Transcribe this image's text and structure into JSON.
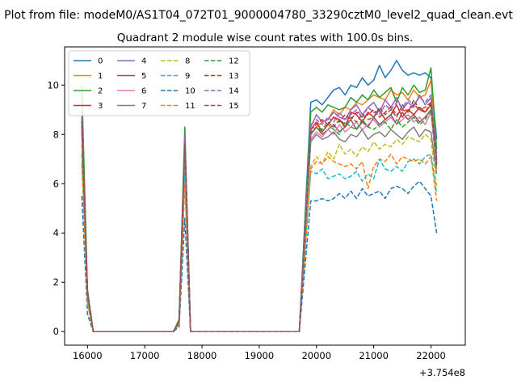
{
  "figure": {
    "suptitle": "Plot from file: modeM0/AS1T04_072T01_9000004780_33290cztM0_level2_quad_clean.evt"
  },
  "chart_data": {
    "type": "line",
    "title": "Quadrant 2 module wise count rates with 100.0s bins.",
    "xlabel": "",
    "ylabel": "",
    "x_offset_label": "+3.754e8",
    "x_offset": 375400000,
    "xlim": [
      375415600,
      375422600
    ],
    "ylim": [
      -0.55,
      11.55
    ],
    "x_ticks": [
      16000,
      17000,
      18000,
      19000,
      20000,
      21000,
      22000
    ],
    "y_ticks": [
      0,
      2,
      4,
      6,
      8,
      10
    ],
    "grid": false,
    "legend_position": "top-left",
    "legend_columns": 4,
    "x": [
      375415900,
      375416000,
      375416100,
      375416200,
      375417500,
      375417600,
      375417700,
      375417800,
      375419700,
      375419900,
      375420000,
      375420100,
      375420200,
      375420300,
      375420400,
      375420500,
      375420600,
      375420700,
      375420800,
      375420900,
      375421000,
      375421100,
      375421200,
      375421300,
      375421400,
      375421500,
      375421600,
      375421700,
      375421800,
      375421900,
      375422000,
      375422100
    ],
    "series": [
      {
        "name": "0",
        "color": "#1f77b4",
        "dash": "solid",
        "values": [
          8.7,
          1.5,
          0,
          0,
          0,
          0.4,
          8.0,
          0,
          0,
          9.3,
          9.4,
          9.2,
          9.5,
          9.8,
          9.9,
          9.6,
          10.0,
          9.9,
          10.3,
          10.0,
          10.2,
          10.8,
          10.3,
          10.6,
          11.0,
          10.6,
          10.4,
          10.5,
          10.4,
          10.5,
          10.3,
          7.8
        ]
      },
      {
        "name": "1",
        "color": "#ff7f0e",
        "dash": "solid",
        "values": [
          8.5,
          1.6,
          0,
          0,
          0,
          0.4,
          7.7,
          0,
          0,
          8.0,
          8.3,
          8.5,
          8.6,
          9.0,
          8.8,
          9.1,
          9.0,
          9.3,
          9.2,
          9.4,
          9.6,
          9.5,
          9.4,
          9.8,
          9.6,
          9.7,
          9.4,
          9.8,
          9.5,
          9.6,
          10.2,
          7.2
        ]
      },
      {
        "name": "2",
        "color": "#2ca02c",
        "dash": "solid",
        "values": [
          10.0,
          1.7,
          0,
          0,
          0,
          0.5,
          8.3,
          0,
          0,
          8.9,
          9.1,
          8.9,
          9.2,
          9.1,
          9.0,
          9.1,
          9.5,
          9.3,
          9.6,
          9.4,
          9.8,
          9.5,
          9.7,
          9.9,
          9.3,
          9.9,
          9.6,
          10.0,
          9.7,
          9.8,
          10.7,
          7.4
        ]
      },
      {
        "name": "3",
        "color": "#d62728",
        "dash": "solid",
        "values": [
          8.4,
          1.6,
          0,
          0,
          0,
          0.4,
          7.8,
          0,
          0,
          8.2,
          8.5,
          8.1,
          8.4,
          8.7,
          8.6,
          8.3,
          8.9,
          8.8,
          8.5,
          8.9,
          8.7,
          9.0,
          8.6,
          8.8,
          9.2,
          8.7,
          9.0,
          8.8,
          9.1,
          8.9,
          9.2,
          6.9
        ]
      },
      {
        "name": "4",
        "color": "#9467bd",
        "dash": "solid",
        "values": [
          8.9,
          1.6,
          0,
          0,
          0,
          0.4,
          7.9,
          0,
          0,
          8.3,
          8.8,
          8.5,
          8.6,
          8.9,
          8.7,
          8.6,
          9.0,
          9.2,
          8.8,
          9.1,
          9.3,
          8.9,
          9.4,
          9.1,
          9.5,
          9.0,
          9.3,
          9.1,
          9.6,
          9.2,
          9.5,
          7.0
        ]
      },
      {
        "name": "5",
        "color": "#8c564b",
        "dash": "solid",
        "values": [
          8.6,
          1.5,
          0,
          0,
          0,
          0.4,
          7.5,
          0,
          0,
          8.0,
          8.3,
          8.0,
          8.2,
          8.4,
          8.1,
          8.3,
          8.6,
          8.2,
          8.5,
          8.3,
          8.7,
          8.4,
          8.6,
          8.8,
          8.4,
          8.9,
          8.6,
          8.8,
          8.5,
          8.7,
          9.0,
          6.8
        ]
      },
      {
        "name": "6",
        "color": "#e377c2",
        "dash": "solid",
        "values": [
          8.3,
          1.5,
          0,
          0,
          0,
          0.4,
          7.4,
          0,
          0,
          7.8,
          8.1,
          7.9,
          8.2,
          8.0,
          8.4,
          8.1,
          8.3,
          8.5,
          8.2,
          8.4,
          8.6,
          8.3,
          8.5,
          8.7,
          8.4,
          8.6,
          8.8,
          8.5,
          8.7,
          8.4,
          8.9,
          6.6
        ]
      },
      {
        "name": "7",
        "color": "#7f7f7f",
        "dash": "solid",
        "values": [
          8.1,
          1.5,
          0,
          0,
          0,
          0.4,
          7.3,
          0,
          0,
          7.7,
          8.0,
          7.8,
          7.9,
          8.1,
          7.8,
          7.7,
          8.0,
          7.9,
          8.2,
          7.8,
          8.0,
          8.1,
          7.9,
          8.2,
          8.0,
          7.8,
          8.1,
          8.3,
          7.9,
          8.2,
          8.1,
          6.4
        ]
      },
      {
        "name": "8",
        "color": "#bcbd22",
        "dash": "dashed",
        "values": [
          7.6,
          1.3,
          0,
          0,
          0,
          0.3,
          7.0,
          0,
          0,
          6.7,
          7.1,
          6.8,
          7.3,
          7.0,
          7.6,
          7.2,
          7.4,
          7.1,
          7.5,
          7.3,
          7.7,
          7.4,
          7.6,
          7.5,
          7.8,
          7.6,
          7.9,
          7.8,
          7.7,
          8.0,
          7.8,
          5.9
        ]
      },
      {
        "name": "9",
        "color": "#17becf",
        "dash": "dashed",
        "values": [
          7.2,
          1.2,
          0,
          0,
          0,
          0.3,
          6.4,
          0,
          0,
          6.5,
          6.4,
          6.6,
          6.2,
          6.3,
          6.4,
          6.2,
          6.3,
          6.5,
          6.1,
          6.4,
          6.2,
          7.0,
          6.6,
          6.5,
          6.7,
          6.5,
          6.9,
          7.0,
          6.8,
          7.1,
          7.2,
          5.6
        ]
      },
      {
        "name": "10",
        "color": "#1f77b4",
        "dash": "dashed",
        "values": [
          5.5,
          0.7,
          0,
          0,
          0,
          0.2,
          4.6,
          0,
          0,
          5.3,
          5.3,
          5.4,
          5.3,
          5.4,
          5.6,
          5.4,
          5.7,
          5.4,
          5.8,
          5.5,
          5.6,
          5.7,
          5.4,
          5.8,
          5.9,
          5.8,
          5.6,
          5.9,
          6.1,
          5.8,
          5.5,
          4.0
        ]
      },
      {
        "name": "11",
        "color": "#ff7f0e",
        "dash": "dashed",
        "values": [
          6.8,
          1.1,
          0,
          0,
          0,
          0.3,
          6.0,
          0,
          0,
          6.6,
          6.9,
          6.8,
          7.1,
          6.9,
          6.8,
          6.7,
          6.8,
          6.6,
          6.9,
          5.8,
          6.7,
          7.0,
          6.9,
          7.2,
          6.8,
          7.1,
          7.0,
          6.9,
          7.0,
          6.8,
          7.1,
          5.3
        ]
      },
      {
        "name": "12",
        "color": "#2ca02c",
        "dash": "dashed",
        "values": [
          8.5,
          1.6,
          0,
          0,
          0,
          0.4,
          7.7,
          0,
          0,
          8.0,
          8.3,
          8.1,
          8.4,
          8.2,
          8.0,
          8.5,
          8.3,
          8.2,
          8.6,
          8.3,
          8.2,
          8.4,
          8.5,
          8.2,
          8.6,
          8.3,
          8.5,
          8.7,
          8.4,
          8.6,
          9.0,
          6.7
        ]
      },
      {
        "name": "13",
        "color": "#d62728",
        "dash": "dashed",
        "values": [
          8.6,
          1.6,
          0,
          0,
          0,
          0.4,
          7.8,
          0,
          0,
          8.2,
          8.4,
          8.6,
          8.4,
          8.7,
          8.5,
          8.8,
          8.6,
          8.9,
          8.7,
          8.8,
          9.0,
          8.7,
          8.9,
          9.1,
          8.8,
          9.0,
          8.9,
          9.2,
          9.0,
          8.9,
          9.3,
          6.9
        ]
      },
      {
        "name": "14",
        "color": "#9467bd",
        "dash": "dashed",
        "values": [
          8.7,
          1.6,
          0,
          0,
          0,
          0.4,
          7.9,
          0,
          0,
          8.4,
          8.6,
          8.4,
          8.7,
          8.5,
          8.9,
          8.6,
          8.8,
          9.0,
          8.7,
          9.1,
          8.9,
          8.8,
          9.2,
          9.0,
          9.3,
          9.1,
          9.4,
          9.2,
          9.5,
          9.3,
          9.6,
          7.1
        ]
      },
      {
        "name": "15",
        "color": "#8c564b",
        "dash": "dashed",
        "values": [
          8.4,
          1.5,
          0,
          0,
          0,
          0.4,
          7.6,
          0,
          0,
          8.1,
          8.3,
          8.2,
          8.5,
          8.3,
          8.6,
          8.4,
          8.7,
          8.5,
          8.8,
          8.6,
          8.7,
          9.1,
          8.8,
          9.0,
          8.7,
          9.2,
          8.9,
          9.4,
          9.0,
          9.1,
          9.3,
          6.8
        ]
      }
    ]
  }
}
